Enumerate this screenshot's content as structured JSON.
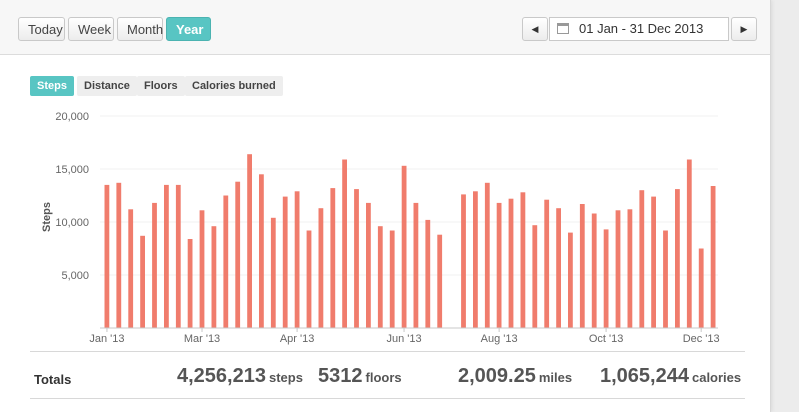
{
  "toolbar": {
    "range_buttons": [
      "Today",
      "Week",
      "Month",
      "Year"
    ],
    "active_range": "Year",
    "date_range": "01 Jan - 31 Dec 2013",
    "prev_icon": "triangle-left-icon",
    "next_icon": "triangle-right-icon",
    "calendar_icon": "calendar-icon"
  },
  "metric_tabs": {
    "items": [
      "Steps",
      "Distance",
      "Floors",
      "Calories burned"
    ],
    "active": "Steps"
  },
  "colors": {
    "accent": "#58c5c3",
    "bar": "#f07c6c"
  },
  "chart_data": {
    "type": "bar",
    "ylabel": "Steps",
    "ylim": [
      0,
      20000
    ],
    "yticks": [
      "20,000",
      "15,000",
      "10,000",
      "5,000"
    ],
    "xtick_labels": [
      "Jan '13",
      "Mar '13",
      "Apr '13",
      "Jun '13",
      "Aug '13",
      "Oct '13",
      "Dec '13"
    ],
    "grid": true,
    "series": [
      {
        "values": [
          13500,
          13700,
          11200,
          8700,
          11800,
          13500,
          13500,
          8400,
          11100,
          9600,
          12500,
          13800,
          16400,
          14500,
          10400,
          12400,
          12900,
          9200,
          11300,
          13200,
          15900,
          13100,
          11800,
          9600,
          9200,
          15300,
          11800,
          10200,
          8800,
          null,
          12600,
          12900,
          13700,
          11800,
          12200,
          12800,
          9700,
          12100,
          11300,
          9000,
          11700,
          10800,
          9300,
          11100,
          11200,
          13000,
          12400,
          9200,
          13100,
          15900,
          7500,
          13400
        ]
      }
    ]
  },
  "totals": {
    "label": "Totals",
    "items": [
      {
        "value": "4,256,213",
        "unit": "steps"
      },
      {
        "value": "5312",
        "unit": "floors"
      },
      {
        "value": "2,009.25",
        "unit": "miles"
      },
      {
        "value": "1,065,244",
        "unit": "calories"
      }
    ]
  }
}
